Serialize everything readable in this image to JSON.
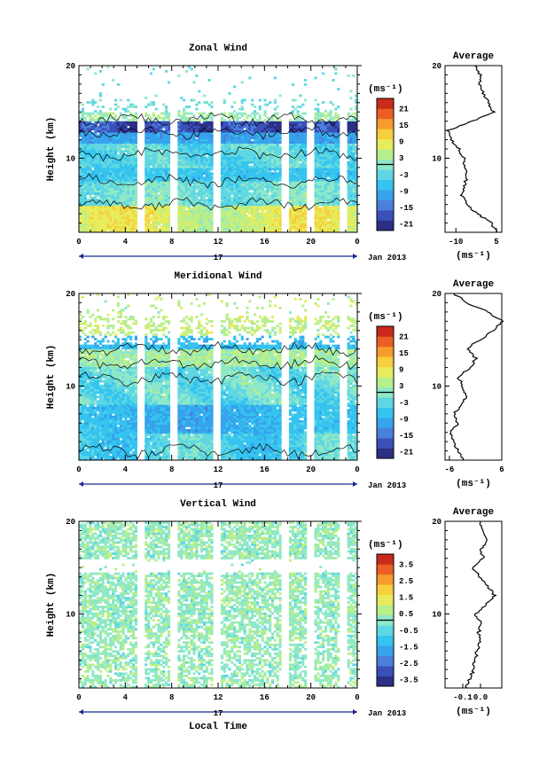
{
  "chart_data": [
    {
      "type": "heatmap",
      "title": "Zonal Wind",
      "xlabel": "",
      "ylabel": "Height (km)",
      "x_ticks": [
        "0",
        "4",
        "8",
        "12",
        "16",
        "20",
        "0"
      ],
      "y_ticks": [
        "20",
        "10"
      ],
      "xlim_hours": [
        0,
        24
      ],
      "ylim_km": [
        2,
        20
      ],
      "date_label": "17",
      "date_suffix": "Jan 2013",
      "colorbar": {
        "unit": "(ms⁻¹)",
        "ticks": [
          "21",
          "15",
          "9",
          "3",
          "-3",
          "-9",
          "-15",
          "-21"
        ],
        "min": -24,
        "max": 24
      },
      "average_profile": {
        "title": "Average",
        "xlabel": "(ms⁻¹)",
        "x_ticks": [
          "-10",
          "5"
        ],
        "xlim": [
          -14,
          7
        ],
        "height_km": [
          2,
          3,
          4,
          5,
          6,
          7,
          8,
          9,
          10,
          11,
          12,
          13,
          14,
          15,
          16,
          17,
          18,
          19,
          20
        ],
        "value": [
          5,
          3,
          -2,
          -6,
          -8,
          -7,
          -6,
          -7,
          -7,
          -9,
          -12,
          -13,
          -4,
          4,
          2,
          0,
          -1,
          -1,
          -3
        ]
      }
    },
    {
      "type": "heatmap",
      "title": "Meridional Wind",
      "xlabel": "",
      "ylabel": "Height (km)",
      "x_ticks": [
        "0",
        "4",
        "8",
        "12",
        "16",
        "20",
        "0"
      ],
      "y_ticks": [
        "20",
        "10"
      ],
      "xlim_hours": [
        0,
        24
      ],
      "ylim_km": [
        2,
        20
      ],
      "date_label": "17",
      "date_suffix": "Jan 2013",
      "colorbar": {
        "unit": "(ms⁻¹)",
        "ticks": [
          "21",
          "15",
          "9",
          "3",
          "-3",
          "-9",
          "-15",
          "-21"
        ],
        "min": -24,
        "max": 24
      },
      "average_profile": {
        "title": "Average",
        "xlabel": "(ms⁻¹)",
        "x_ticks": [
          "-6",
          "6"
        ],
        "xlim": [
          -7,
          6
        ],
        "height_km": [
          2,
          3,
          4,
          5,
          6,
          7,
          8,
          9,
          10,
          11,
          12,
          13,
          14,
          15,
          16,
          17,
          18,
          19,
          20
        ],
        "value": [
          -3,
          -4,
          -5,
          -6,
          -4,
          -5,
          -3,
          -2,
          -3,
          -4,
          -1,
          0,
          -2,
          1,
          4,
          6,
          3,
          -2,
          -5
        ]
      }
    },
    {
      "type": "heatmap",
      "title": "Vertical Wind",
      "xlabel": "Local Time",
      "ylabel": "Height (km)",
      "x_ticks": [
        "0",
        "4",
        "8",
        "12",
        "16",
        "20",
        "0"
      ],
      "y_ticks": [
        "20",
        "10"
      ],
      "xlim_hours": [
        0,
        24
      ],
      "ylim_km": [
        2,
        20
      ],
      "date_label": "17",
      "date_suffix": "Jan 2013",
      "colorbar": {
        "unit": "(ms⁻¹)",
        "ticks": [
          "3.5",
          "2.5",
          "1.5",
          "0.5",
          "-0.5",
          "-1.5",
          "-2.5",
          "-3.5"
        ],
        "min": -4,
        "max": 4
      },
      "average_profile": {
        "title": "Average",
        "xlabel": "(ms⁻¹)",
        "x_ticks": [
          "-0.1",
          "0.0"
        ],
        "xlim": [
          -0.2,
          0.12
        ],
        "height_km": [
          2,
          3,
          4,
          5,
          6,
          7,
          8,
          9,
          10,
          11,
          12,
          13,
          14,
          15,
          16,
          17,
          18,
          19,
          20
        ],
        "value": [
          -0.08,
          -0.06,
          -0.04,
          -0.03,
          -0.02,
          0.0,
          -0.01,
          0.0,
          -0.03,
          0.03,
          0.08,
          0.04,
          0.0,
          -0.05,
          0.02,
          0.0,
          0.04,
          0.01,
          0.0
        ]
      }
    }
  ]
}
